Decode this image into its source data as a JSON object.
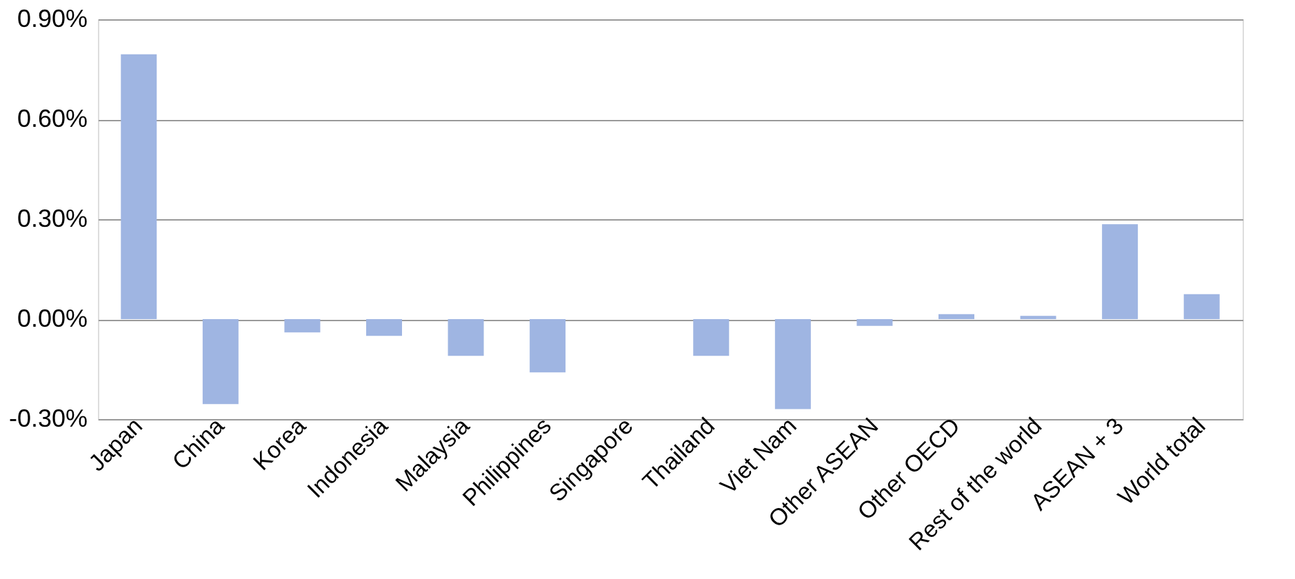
{
  "chart_data": {
    "type": "bar",
    "categories": [
      "Japan",
      "China",
      "Korea",
      "Indonesia",
      "Malaysia",
      "Philippines",
      "Singapore",
      "Thailand",
      "Viet Nam",
      "Other ASEAN",
      "Other OECD",
      "Rest of the world",
      "ASEAN + 3",
      "World total"
    ],
    "values": [
      0.795,
      -0.255,
      -0.04,
      -0.05,
      -0.11,
      -0.16,
      0,
      -0.11,
      -0.27,
      -0.02,
      0.015,
      0.01,
      0.285,
      0.075
    ],
    "color": "#9fb5e2",
    "ylim": [
      -0.3,
      0.9
    ],
    "yticks": [
      {
        "value": -0.3,
        "label": "-0.30%"
      },
      {
        "value": 0,
        "label": "0.00%"
      },
      {
        "value": 0.3,
        "label": "0.30%"
      },
      {
        "value": 0.6,
        "label": "0.60%"
      },
      {
        "value": 0.9,
        "label": "0.90%"
      }
    ],
    "grid": "y"
  }
}
